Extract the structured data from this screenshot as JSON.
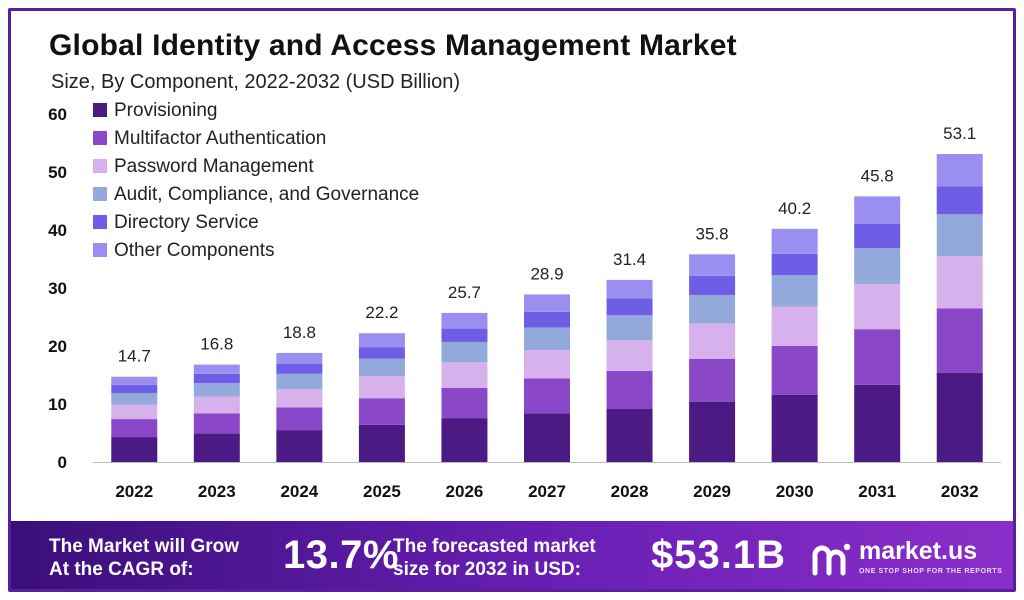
{
  "header": {
    "title": "Global Identity and Access Management Market",
    "subtitle": "Size, By Component, 2022-2032 (USD Billion)"
  },
  "chart_data": {
    "type": "bar",
    "stacked": true,
    "categories": [
      "2022",
      "2023",
      "2024",
      "2025",
      "2026",
      "2027",
      "2028",
      "2029",
      "2030",
      "2031",
      "2032"
    ],
    "totals": [
      14.7,
      16.8,
      18.8,
      22.2,
      25.7,
      28.9,
      31.4,
      35.8,
      40.2,
      45.8,
      53.1
    ],
    "ylim": [
      0,
      60
    ],
    "yticks": [
      0,
      10,
      20,
      30,
      40,
      50,
      60
    ],
    "grid": false,
    "legend_position": "top-left",
    "series": [
      {
        "name": "Provisioning",
        "color": "#4b1a82",
        "values": [
          4.3,
          4.9,
          5.5,
          6.4,
          7.5,
          8.4,
          9.2,
          10.4,
          11.6,
          13.3,
          15.4
        ]
      },
      {
        "name": "Multifactor Authentication",
        "color": "#8a48c8",
        "values": [
          3.1,
          3.5,
          3.9,
          4.6,
          5.3,
          6.0,
          6.5,
          7.4,
          8.4,
          9.6,
          11.1
        ]
      },
      {
        "name": "Password Management",
        "color": "#d7b1ec",
        "values": [
          2.5,
          2.9,
          3.2,
          3.8,
          4.4,
          4.9,
          5.3,
          6.1,
          6.8,
          7.8,
          9.0
        ]
      },
      {
        "name": "Audit, Compliance, and Governance",
        "color": "#93a9db",
        "values": [
          2.0,
          2.3,
          2.6,
          3.0,
          3.5,
          3.9,
          4.3,
          4.9,
          5.4,
          6.2,
          7.2
        ]
      },
      {
        "name": "Directory Service",
        "color": "#6e5ee6",
        "values": [
          1.4,
          1.6,
          1.7,
          2.0,
          2.3,
          2.7,
          2.9,
          3.3,
          3.7,
          4.2,
          4.8
        ]
      },
      {
        "name": "Other Components",
        "color": "#9a8ff0",
        "values": [
          1.4,
          1.6,
          1.9,
          2.4,
          2.7,
          3.0,
          3.2,
          3.7,
          4.3,
          4.7,
          5.6
        ]
      }
    ]
  },
  "footer": {
    "grow_text_line1": "The Market will Grow",
    "grow_text_line2": "At the CAGR of:",
    "cagr": "13.7%",
    "forecast_text_line1": "The forecasted market",
    "forecast_text_line2": "size for 2032 in USD:",
    "forecast_value": "$53.1B",
    "brand_name": "market.us",
    "brand_tagline": "ONE STOP SHOP FOR THE REPORTS"
  }
}
